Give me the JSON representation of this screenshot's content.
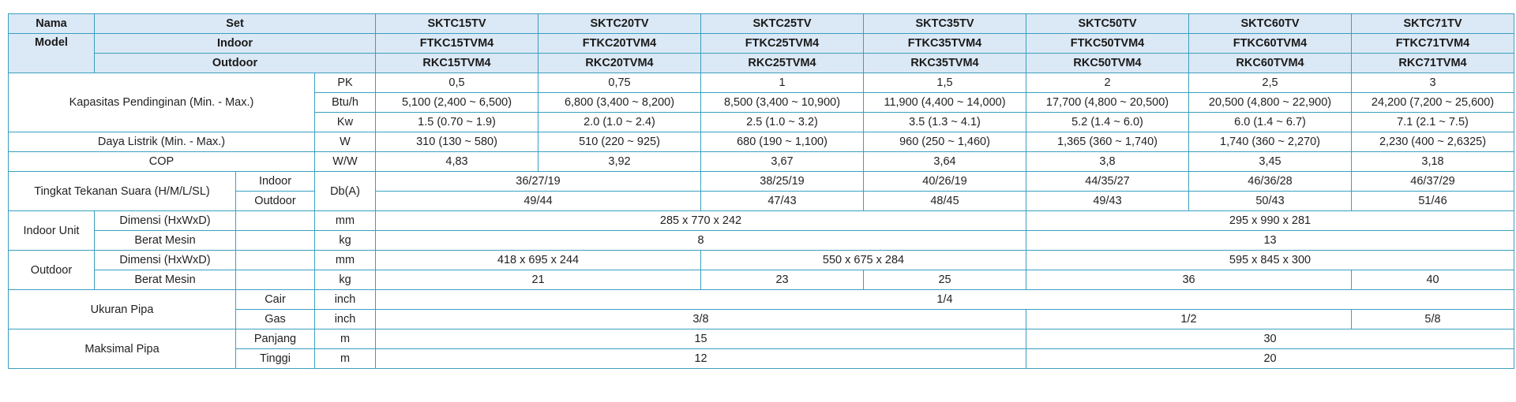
{
  "header": {
    "nama": "Nama",
    "model": "Model",
    "set": "Set",
    "indoor": "Indoor",
    "outdoor": "Outdoor"
  },
  "models": [
    {
      "set": "SKTC15TV",
      "indoor": "FTKC15TVM4",
      "outdoor": "RKC15TVM4"
    },
    {
      "set": "SKTC20TV",
      "indoor": "FTKC20TVM4",
      "outdoor": "RKC20TVM4"
    },
    {
      "set": "SKTC25TV",
      "indoor": "FTKC25TVM4",
      "outdoor": "RKC25TVM4"
    },
    {
      "set": "SKTC35TV",
      "indoor": "FTKC35TVM4",
      "outdoor": "RKC35TVM4"
    },
    {
      "set": "SKTC50TV",
      "indoor": "FTKC50TVM4",
      "outdoor": "RKC50TVM4"
    },
    {
      "set": "SKTC60TV",
      "indoor": "FTKC60TVM4",
      "outdoor": "RKC60TVM4"
    },
    {
      "set": "SKTC71TV",
      "indoor": "FTKC71TVM4",
      "outdoor": "RKC71TVM4"
    }
  ],
  "kapasitas": {
    "label": "Kapasitas Pendinginan (Min. - Max.)",
    "pk_unit": "PK",
    "pk": [
      "0,5",
      "0,75",
      "1",
      "1,5",
      "2",
      "2,5",
      "3"
    ],
    "btu_unit": "Btu/h",
    "btu": [
      "5,100 (2,400 ~ 6,500)",
      "6,800 (3,400 ~ 8,200)",
      "8,500 (3,400 ~ 10,900)",
      "11,900 (4,400 ~ 14,000)",
      "17,700 (4,800 ~ 20,500)",
      "20,500 (4,800 ~ 22,900)",
      "24,200 (7,200 ~ 25,600)"
    ],
    "kw_unit": "Kw",
    "kw": [
      "1.5 (0.70 ~ 1.9)",
      "2.0 (1.0 ~ 2.4)",
      "2.5 (1.0 ~ 3.2)",
      "3.5 (1.3 ~ 4.1)",
      "5.2 (1.4 ~ 6.0)",
      "6.0 (1.4 ~ 6.7)",
      "7.1 (2.1 ~ 7.5)"
    ]
  },
  "daya": {
    "label": "Daya Listrik (Min. - Max.)",
    "unit": "W",
    "values": [
      "310 (130 ~ 580)",
      "510 (220 ~ 925)",
      "680 (190 ~ 1,100)",
      "960 (250 ~ 1,460)",
      "1,365 (360 ~ 1,740)",
      "1,740 (360 ~ 2,270)",
      "2,230 (400 ~ 2,6325)"
    ]
  },
  "cop": {
    "label": "COP",
    "unit": "W/W",
    "values": [
      "4,83",
      "3,92",
      "3,67",
      "3,64",
      "3,8",
      "3,45",
      "3,18"
    ]
  },
  "suara": {
    "label": "Tingkat Tekanan Suara (H/M/L/SL)",
    "unit": "Db(A)",
    "indoor_label": "Indoor",
    "outdoor_label": "Outdoor",
    "indoor": [
      "36/27/19",
      "38/25/19",
      "40/26/19",
      "44/35/27",
      "46/36/28",
      "46/37/29"
    ],
    "outdoor": [
      "49/44",
      "47/43",
      "48/45",
      "49/43",
      "50/43",
      "51/46"
    ]
  },
  "indoor_unit": {
    "label": "Indoor Unit",
    "dimensi_label": "Dimensi (HxWxD)",
    "dimensi_unit": "mm",
    "dimensi": [
      "285 x 770 x 242",
      "295 x 990 x 281"
    ],
    "berat_label": "Berat Mesin",
    "berat_unit": "kg",
    "berat": [
      "8",
      "13"
    ]
  },
  "outdoor_unit": {
    "label": "Outdoor",
    "dimensi_label": "Dimensi (HxWxD)",
    "dimensi_unit": "mm",
    "dimensi": [
      "418 x 695 x 244",
      "550 x 675 x 284",
      "595 x 845 x 300"
    ],
    "berat_label": "Berat Mesin",
    "berat_unit": "kg",
    "berat": [
      "21",
      "23",
      "25",
      "36",
      "40"
    ]
  },
  "pipa": {
    "label": "Ukuran Pipa",
    "cair_label": "Cair",
    "cair_unit": "inch",
    "cair": [
      "1/4"
    ],
    "gas_label": "Gas",
    "gas_unit": "inch",
    "gas": [
      "3/8",
      "1/2",
      "5/8"
    ]
  },
  "maks": {
    "label": "Maksimal Pipa",
    "panjang_label": "Panjang",
    "panjang_unit": "m",
    "panjang": [
      "15",
      "30"
    ],
    "tinggi_label": "Tinggi",
    "tinggi_unit": "m",
    "tinggi": [
      "12",
      "20"
    ]
  }
}
